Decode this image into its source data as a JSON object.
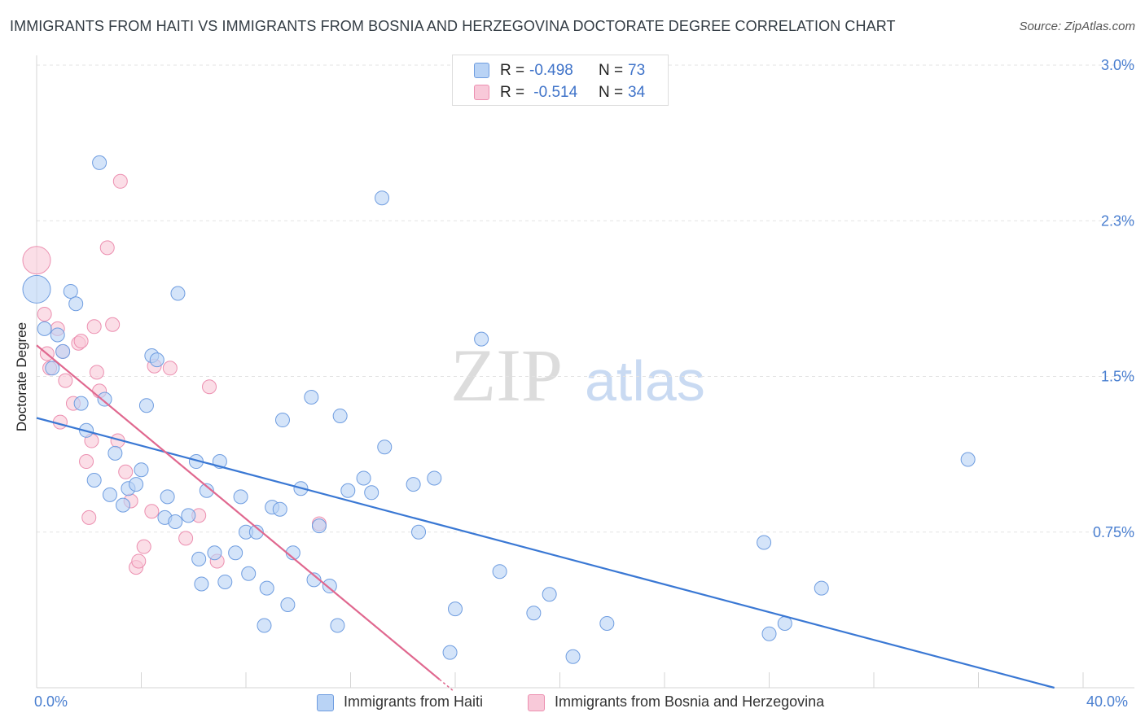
{
  "title": "IMMIGRANTS FROM HAITI VS IMMIGRANTS FROM BOSNIA AND HERZEGOVINA DOCTORATE DEGREE CORRELATION CHART",
  "source": "Source: ZipAtlas.com",
  "watermark": {
    "zip": "ZIP",
    "atlas": "atlas"
  },
  "legend": {
    "series": [
      {
        "r_label": "R =",
        "r_value": "-0.498",
        "n_label": "N =",
        "n_value": "73"
      },
      {
        "r_label": "R =",
        "r_value": " -0.514",
        "n_label": "N =",
        "n_value": "34"
      }
    ]
  },
  "chart_data": {
    "type": "scatter",
    "title": "IMMIGRANTS FROM HAITI VS IMMIGRANTS FROM BOSNIA AND HERZEGOVINA DOCTORATE DEGREE CORRELATION CHART",
    "xlabel": "",
    "ylabel": "Doctorate Degree",
    "xlim": [
      0,
      40
    ],
    "ylim": [
      0,
      3.0
    ],
    "x_tick_labels": [
      "0.0%",
      "40.0%"
    ],
    "y_ticks": [
      0.75,
      1.5,
      2.25,
      3.0
    ],
    "y_tick_labels": [
      "0.75%",
      "1.5%",
      "2.3%",
      "3.0%"
    ],
    "grid": true,
    "legend_position": "top-center",
    "colors": {
      "haiti": "#6f9de0",
      "bosnia": "#ec8fb0",
      "haiti_line": "#3a78d4",
      "bosnia_line": "#e0688f",
      "tick_text": "#4a7fd0"
    },
    "series": [
      {
        "name": "Immigrants from Haiti",
        "r": -0.498,
        "n": 73,
        "trend": {
          "x": [
            0,
            38.9
          ],
          "y": [
            1.3,
            0.0
          ]
        },
        "points": [
          [
            0.0,
            1.92,
            3
          ],
          [
            0.3,
            1.73,
            1
          ],
          [
            0.6,
            1.54,
            1
          ],
          [
            0.8,
            1.7,
            1
          ],
          [
            1.0,
            1.62,
            1
          ],
          [
            1.3,
            1.91,
            1
          ],
          [
            1.5,
            1.85,
            1
          ],
          [
            1.7,
            1.37,
            1
          ],
          [
            1.9,
            1.24,
            1
          ],
          [
            2.2,
            1.0,
            1
          ],
          [
            2.4,
            2.53,
            1
          ],
          [
            2.6,
            1.39,
            1
          ],
          [
            2.8,
            0.93,
            1
          ],
          [
            3.0,
            1.13,
            1
          ],
          [
            3.3,
            0.88,
            1
          ],
          [
            3.5,
            0.96,
            1
          ],
          [
            3.8,
            0.98,
            1
          ],
          [
            4.0,
            1.05,
            1
          ],
          [
            4.2,
            1.36,
            1
          ],
          [
            4.4,
            1.6,
            1
          ],
          [
            4.6,
            1.58,
            1
          ],
          [
            4.9,
            0.82,
            1
          ],
          [
            5.0,
            0.92,
            1
          ],
          [
            5.3,
            0.8,
            1
          ],
          [
            5.4,
            1.9,
            1
          ],
          [
            5.8,
            0.83,
            1
          ],
          [
            6.1,
            1.09,
            1
          ],
          [
            6.2,
            0.62,
            1
          ],
          [
            6.3,
            0.5,
            1
          ],
          [
            6.5,
            0.95,
            1
          ],
          [
            6.8,
            0.65,
            1
          ],
          [
            7.0,
            1.09,
            1
          ],
          [
            7.2,
            0.51,
            1
          ],
          [
            7.6,
            0.65,
            1
          ],
          [
            7.8,
            0.92,
            1
          ],
          [
            8.0,
            0.75,
            1
          ],
          [
            8.1,
            0.55,
            1
          ],
          [
            8.4,
            0.75,
            1
          ],
          [
            8.7,
            0.3,
            1
          ],
          [
            8.8,
            0.48,
            1
          ],
          [
            9.0,
            0.87,
            1
          ],
          [
            9.3,
            0.86,
            1
          ],
          [
            9.4,
            1.29,
            1
          ],
          [
            9.6,
            0.4,
            1
          ],
          [
            9.8,
            0.65,
            1
          ],
          [
            10.1,
            0.96,
            1
          ],
          [
            10.5,
            1.4,
            1
          ],
          [
            10.6,
            0.52,
            1
          ],
          [
            10.8,
            0.78,
            1
          ],
          [
            11.2,
            0.49,
            1
          ],
          [
            11.5,
            0.3,
            1
          ],
          [
            11.6,
            1.31,
            1
          ],
          [
            11.9,
            0.95,
            1
          ],
          [
            12.5,
            1.01,
            1
          ],
          [
            12.8,
            0.94,
            1
          ],
          [
            13.2,
            2.36,
            1
          ],
          [
            13.3,
            1.16,
            1
          ],
          [
            14.4,
            0.98,
            1
          ],
          [
            14.6,
            0.75,
            1
          ],
          [
            15.2,
            1.01,
            1
          ],
          [
            15.8,
            0.17,
            1
          ],
          [
            16.0,
            0.38,
            1
          ],
          [
            17.0,
            1.68,
            1
          ],
          [
            17.7,
            0.56,
            1
          ],
          [
            19.0,
            0.36,
            1
          ],
          [
            19.6,
            0.45,
            1
          ],
          [
            20.5,
            0.15,
            1
          ],
          [
            21.8,
            0.31,
            1
          ],
          [
            27.8,
            0.7,
            1
          ],
          [
            28.0,
            0.26,
            1
          ],
          [
            28.6,
            0.31,
            1
          ],
          [
            30.0,
            0.48,
            1
          ],
          [
            35.6,
            1.1,
            1
          ]
        ]
      },
      {
        "name": "Immigrants from Bosnia and Herzegovina",
        "r": -0.514,
        "n": 34,
        "trend": {
          "x": [
            0,
            15.4
          ],
          "y": [
            1.65,
            0.04
          ]
        },
        "points": [
          [
            0.0,
            2.06,
            3
          ],
          [
            0.3,
            1.8,
            1
          ],
          [
            0.4,
            1.61,
            1
          ],
          [
            0.5,
            1.54,
            1
          ],
          [
            0.8,
            1.73,
            1
          ],
          [
            0.9,
            1.28,
            1
          ],
          [
            1.0,
            1.62,
            1
          ],
          [
            1.1,
            1.48,
            1
          ],
          [
            1.4,
            1.37,
            1
          ],
          [
            1.6,
            1.66,
            1
          ],
          [
            1.7,
            1.67,
            1
          ],
          [
            1.9,
            1.09,
            1
          ],
          [
            2.0,
            0.82,
            1
          ],
          [
            2.1,
            1.19,
            1
          ],
          [
            2.2,
            1.74,
            1
          ],
          [
            2.3,
            1.52,
            1
          ],
          [
            2.4,
            1.43,
            1
          ],
          [
            2.7,
            2.12,
            1
          ],
          [
            2.9,
            1.75,
            1
          ],
          [
            3.1,
            1.19,
            1
          ],
          [
            3.2,
            2.44,
            1
          ],
          [
            3.4,
            1.04,
            1
          ],
          [
            3.6,
            0.9,
            1
          ],
          [
            3.8,
            0.58,
            1
          ],
          [
            3.9,
            0.61,
            1
          ],
          [
            4.1,
            0.68,
            1
          ],
          [
            4.4,
            0.85,
            1
          ],
          [
            4.5,
            1.55,
            1
          ],
          [
            5.1,
            1.54,
            1
          ],
          [
            5.7,
            0.72,
            1
          ],
          [
            6.2,
            0.83,
            1
          ],
          [
            6.6,
            1.45,
            1
          ],
          [
            6.9,
            0.61,
            1
          ],
          [
            10.8,
            0.79,
            1
          ]
        ]
      }
    ]
  },
  "bottom_legend": [
    "Immigrants from Haiti",
    "Immigrants from Bosnia and Herzegovina"
  ]
}
